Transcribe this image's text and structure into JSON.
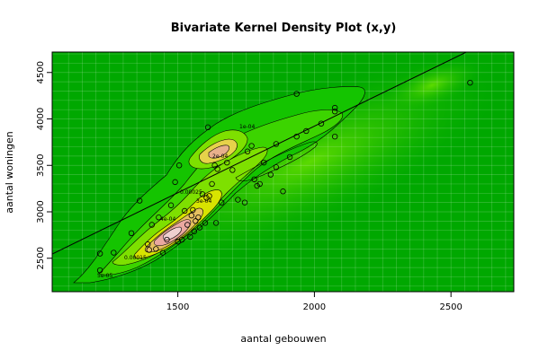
{
  "chart_data": {
    "type": "scatter",
    "title": "Bivariate Kernel Density Plot (x,y)",
    "xlabel": "aantal gebouwen",
    "ylabel": "aantal woningen",
    "xlim": [
      1040,
      2730
    ],
    "ylim": [
      2140,
      4720
    ],
    "xticks": [
      1500,
      2000,
      2500
    ],
    "yticks": [
      2500,
      3000,
      3500,
      4000,
      4500
    ],
    "grid": true,
    "density_fill": true,
    "regression_line": {
      "intercept": 1054.3,
      "slope": 1.434
    },
    "contour_levels": [
      "5e-05",
      "1e-04",
      "0.00015",
      "2e-04",
      "0.00025",
      "3e-04",
      "4e-04"
    ],
    "points": [
      [
        1215,
        2550
      ],
      [
        1215,
        2370
      ],
      [
        1265,
        2560
      ],
      [
        1330,
        2770
      ],
      [
        1360,
        3120
      ],
      [
        1390,
        2650
      ],
      [
        1395,
        2590
      ],
      [
        1405,
        2860
      ],
      [
        1420,
        2600
      ],
      [
        1430,
        2940
      ],
      [
        1445,
        2560
      ],
      [
        1460,
        2700
      ],
      [
        1475,
        3070
      ],
      [
        1490,
        3320
      ],
      [
        1500,
        2680
      ],
      [
        1505,
        3500
      ],
      [
        1515,
        2700
      ],
      [
        1525,
        3010
      ],
      [
        1535,
        2860
      ],
      [
        1545,
        2730
      ],
      [
        1550,
        2960
      ],
      [
        1555,
        3020
      ],
      [
        1560,
        2790
      ],
      [
        1565,
        2900
      ],
      [
        1575,
        2940
      ],
      [
        1580,
        2830
      ],
      [
        1590,
        3190
      ],
      [
        1600,
        2880
      ],
      [
        1605,
        3150
      ],
      [
        1610,
        3910
      ],
      [
        1615,
        3170
      ],
      [
        1625,
        3300
      ],
      [
        1635,
        3500
      ],
      [
        1640,
        2880
      ],
      [
        1645,
        3460
      ],
      [
        1660,
        3100
      ],
      [
        1680,
        3530
      ],
      [
        1700,
        3450
      ],
      [
        1720,
        3130
      ],
      [
        1745,
        3100
      ],
      [
        1755,
        3650
      ],
      [
        1770,
        3710
      ],
      [
        1780,
        3350
      ],
      [
        1790,
        3280
      ],
      [
        1800,
        3300
      ],
      [
        1815,
        3530
      ],
      [
        1840,
        3400
      ],
      [
        1860,
        3730
      ],
      [
        1860,
        3480
      ],
      [
        1885,
        3220
      ],
      [
        1910,
        3590
      ],
      [
        1935,
        3810
      ],
      [
        1935,
        4270
      ],
      [
        1970,
        3870
      ],
      [
        2025,
        3950
      ],
      [
        2075,
        4120
      ],
      [
        2075,
        4080
      ],
      [
        2075,
        3810
      ],
      [
        2570,
        4390
      ]
    ]
  }
}
